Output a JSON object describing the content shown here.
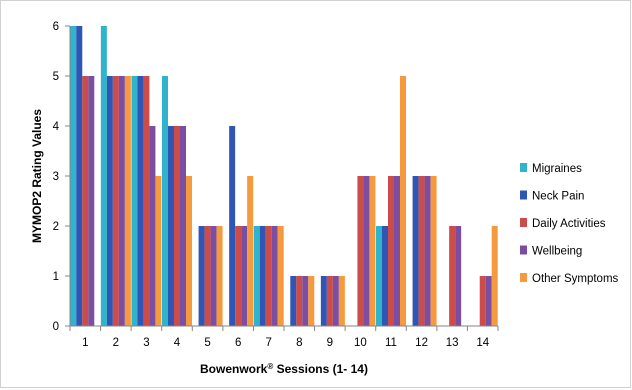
{
  "chart_data": {
    "type": "bar",
    "xlabel_main": "Bowenwork",
    "xlabel_sup": "®",
    "xlabel_rest": " Sessions (1- 14)",
    "ylabel": "MYMOP2 Rating Values",
    "ylim": [
      0,
      6
    ],
    "yticks": [
      "0",
      "1",
      "2",
      "3",
      "4",
      "5",
      "6"
    ],
    "grid": false,
    "legend_position": "right",
    "categories": [
      "1",
      "2",
      "3",
      "4",
      "5",
      "6",
      "7",
      "8",
      "9",
      "10",
      "11",
      "12",
      "13",
      "14"
    ],
    "series": [
      {
        "name": "Migraines",
        "color": "#2fb4cc",
        "values": [
          6,
          6,
          5,
          5,
          0,
          0,
          2,
          0,
          0,
          0,
          2,
          0,
          0,
          0
        ]
      },
      {
        "name": "Neck Pain",
        "color": "#2f55b5",
        "values": [
          6,
          5,
          5,
          4,
          2,
          4,
          2,
          1,
          1,
          0,
          2,
          3,
          0,
          0
        ]
      },
      {
        "name": "Daily Activities",
        "color": "#cc4c4a",
        "values": [
          5,
          5,
          5,
          4,
          2,
          2,
          2,
          1,
          1,
          3,
          3,
          3,
          2,
          1
        ]
      },
      {
        "name": "Wellbeing",
        "color": "#7a4fa2",
        "values": [
          5,
          5,
          4,
          4,
          2,
          2,
          2,
          1,
          1,
          3,
          3,
          3,
          2,
          1
        ]
      },
      {
        "name": "Other Symptoms",
        "color": "#f59a3f",
        "values": [
          0,
          5,
          3,
          3,
          2,
          3,
          2,
          1,
          1,
          3,
          5,
          3,
          0,
          2
        ]
      }
    ]
  }
}
